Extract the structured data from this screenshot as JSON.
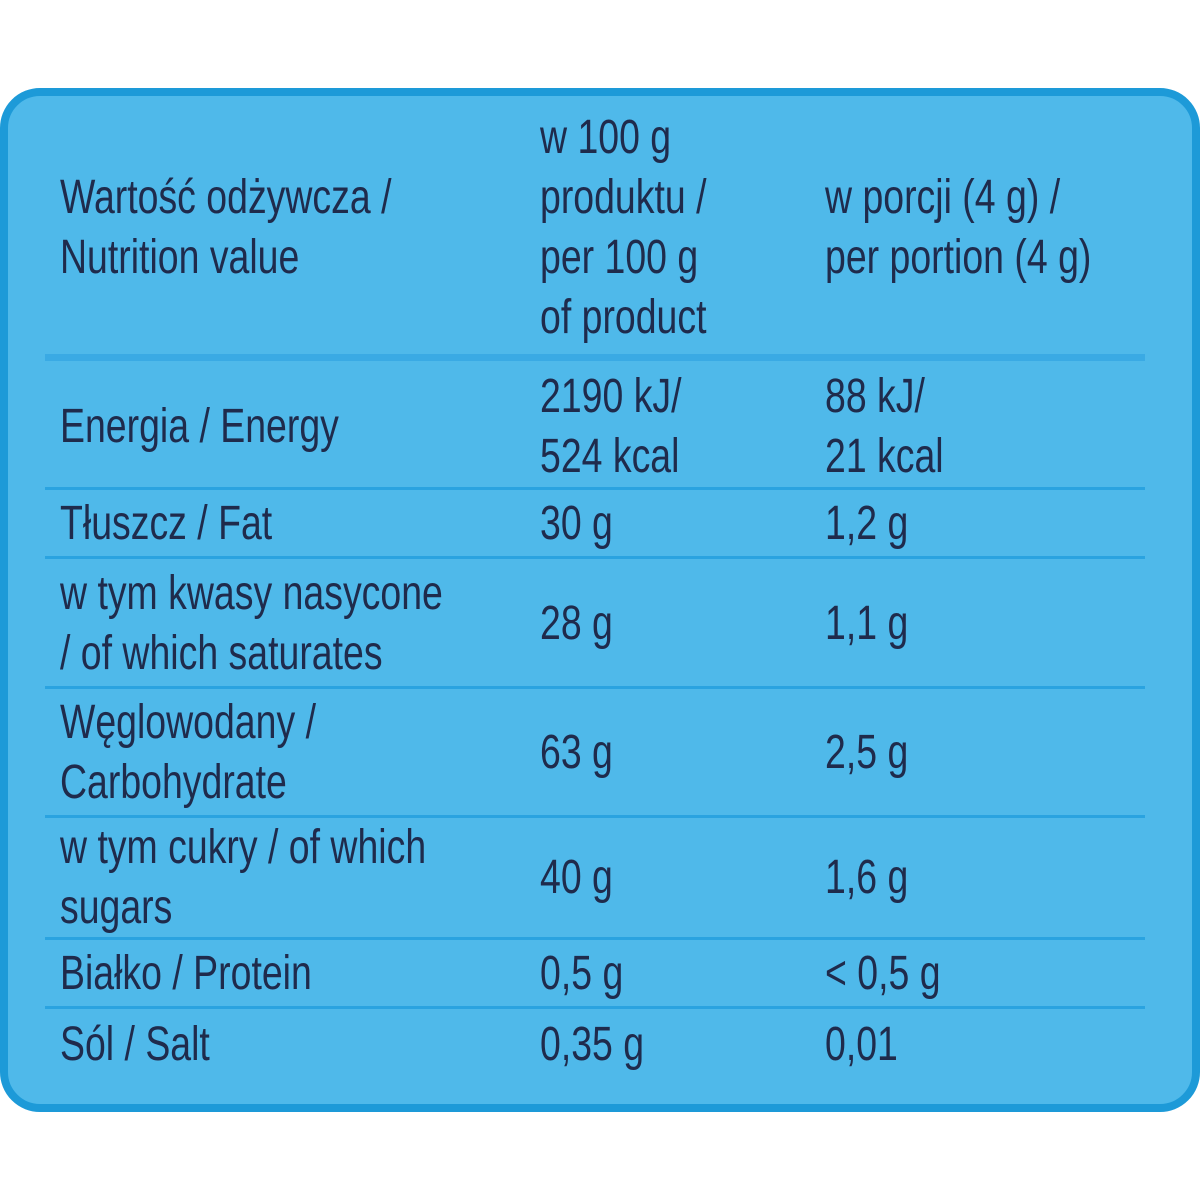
{
  "table": {
    "header": [
      [
        "Wartość odżywcza /",
        "Nutrition value"
      ],
      [
        "w 100 g",
        "produktu /",
        "per 100 g",
        "of product"
      ],
      [
        "w porcji (4 g) /",
        "per portion (4 g)"
      ]
    ],
    "rows": [
      [
        [
          "Energia / Energy"
        ],
        [
          "2190 kJ/",
          "524 kcal"
        ],
        [
          "88 kJ/",
          "21 kcal"
        ]
      ],
      [
        [
          "Tłuszcz / Fat"
        ],
        [
          "30 g"
        ],
        [
          "1,2 g"
        ]
      ],
      [
        [
          "w tym kwasy nasycone",
          "/ of which saturates"
        ],
        [
          "28 g"
        ],
        [
          "1,1 g"
        ]
      ],
      [
        [
          "Węglowodany /",
          "Carbohydrate"
        ],
        [
          "63 g"
        ],
        [
          "2,5 g"
        ]
      ],
      [
        [
          "w tym cukry / of which",
          "sugars"
        ],
        [
          "40 g"
        ],
        [
          "1,6 g"
        ]
      ],
      [
        [
          "Białko / Protein"
        ],
        [
          "0,5 g"
        ],
        [
          "< 0,5 g"
        ]
      ],
      [
        [
          "Sól / Salt"
        ],
        [
          "0,35 g"
        ],
        [
          "0,01"
        ]
      ]
    ]
  }
}
